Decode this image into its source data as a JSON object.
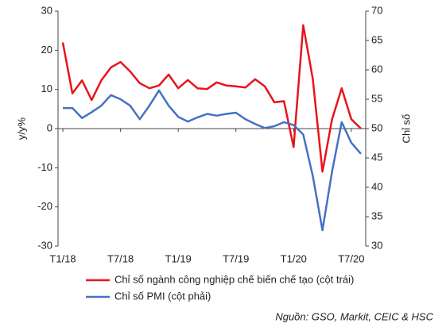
{
  "chart_data": {
    "type": "line",
    "ylabel": "y/y%",
    "y2label": "Chỉ số",
    "categories": [
      "T1/18",
      null,
      null,
      null,
      null,
      null,
      "T7/18",
      null,
      null,
      null,
      null,
      null,
      "T1/19",
      null,
      null,
      null,
      null,
      null,
      "T7/19",
      null,
      null,
      null,
      null,
      null,
      "T1/20",
      null,
      null,
      null,
      null,
      null,
      "T7/20",
      null
    ],
    "series": [
      {
        "name": "Chỉ số ngành công nghiệp chế biến chế tạo (cột trái)",
        "color": "#e8141b",
        "axis": "y",
        "values": [
          22,
          9,
          12.3,
          7.3,
          12.3,
          15.6,
          17,
          14.6,
          11.6,
          10.3,
          11,
          13.8,
          10.3,
          12.4,
          10.3,
          10.1,
          11.8,
          11,
          10.8,
          10.5,
          12.6,
          10.8,
          6.7,
          7,
          -4.7,
          26.4,
          12.6,
          -11,
          2.4,
          10.3,
          2.4,
          0
        ]
      },
      {
        "name": "Chỉ số PMI (cột phải)",
        "color": "#4472c4",
        "axis": "y2",
        "values": [
          53.5,
          53.5,
          51.8,
          52.8,
          53.9,
          55.7,
          55,
          53.9,
          51.6,
          53.9,
          56.5,
          53.9,
          52,
          51.2,
          51.9,
          52.5,
          52.2,
          52.5,
          52.7,
          51.6,
          50.8,
          50.1,
          50.4,
          51.1,
          50.6,
          49,
          41.9,
          32.7,
          42.7,
          51.1,
          47.6,
          45.7
        ]
      }
    ],
    "ylim": [
      -30,
      30
    ],
    "yticks": [
      -30,
      -20,
      -10,
      0,
      10,
      20,
      30
    ],
    "y2lim": [
      30,
      70
    ],
    "y2ticks": [
      30,
      35,
      40,
      45,
      50,
      55,
      60,
      65,
      70
    ],
    "source": "Nguồn: GSO, Markit, CEIC & HSC"
  }
}
